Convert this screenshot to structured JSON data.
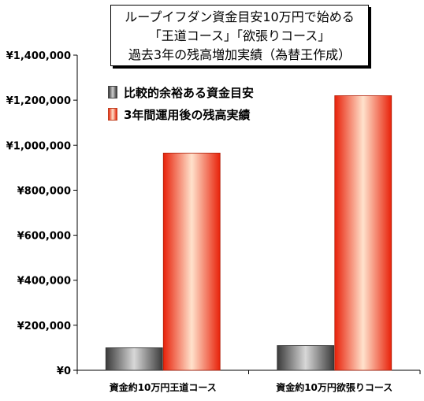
{
  "chart_data": {
    "type": "bar",
    "title_lines": [
      "ループイフダン資金目安10万円で始める",
      "「王道コース」「欲張りコース」",
      "過去3年の残高増加実績（為替王作成）"
    ],
    "categories": [
      "資金約10万円王道コース",
      "資金約10万円欲張りコース"
    ],
    "series": [
      {
        "name": "比較的余裕ある資金目安",
        "values": [
          100000,
          110000
        ],
        "color": "#8a8a8a"
      },
      {
        "name": "3年間運用後の残高実績",
        "values": [
          965000,
          1220000
        ],
        "color": "#ff3a1a"
      }
    ],
    "y_ticks": [
      0,
      200000,
      400000,
      600000,
      800000,
      1000000,
      1200000,
      1400000
    ],
    "y_tick_labels": [
      "¥0",
      "¥200,000",
      "¥400,000",
      "¥600,000",
      "¥800,000",
      "¥1,000,000",
      "¥1,200,000",
      "¥1,400,000"
    ],
    "ylim": [
      0,
      1400000
    ],
    "legend_position": "top-left, inside plot",
    "grid": false
  }
}
